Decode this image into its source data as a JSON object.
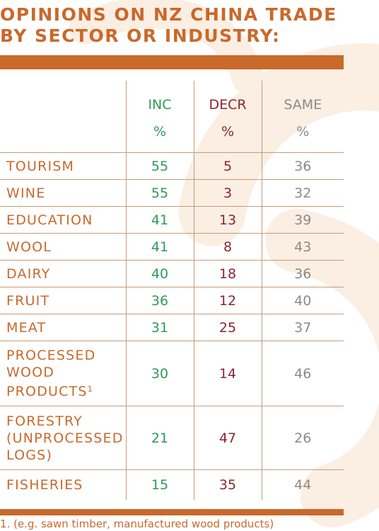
{
  "title_lines": [
    "OPINIONS ON NZ CHINA TRADE",
    "BY SECTOR OR INDUSTRY:"
  ],
  "columns": [
    {
      "label": "INC",
      "unit": "%"
    },
    {
      "label": "DECR",
      "unit": "%"
    },
    {
      "label": "SAME",
      "unit": "%"
    }
  ],
  "rows": [
    {
      "sector": "TOURISM",
      "inc": "55",
      "decr": "5",
      "same": "36"
    },
    {
      "sector": "WINE",
      "inc": "55",
      "decr": "3",
      "same": "32"
    },
    {
      "sector": "EDUCATION",
      "inc": "41",
      "decr": "13",
      "same": "39"
    },
    {
      "sector": "WOOL",
      "inc": "41",
      "decr": "8",
      "same": "43"
    },
    {
      "sector": "DAIRY",
      "inc": "40",
      "decr": "18",
      "same": "36"
    },
    {
      "sector": "FRUIT",
      "inc": "36",
      "decr": "12",
      "same": "40"
    },
    {
      "sector": "MEAT",
      "inc": "31",
      "decr": "25",
      "same": "37"
    },
    {
      "sector_lines": [
        "PROCESSED",
        "WOOD",
        "PRODUCTS"
      ],
      "footnote_mark": "1",
      "inc": "30",
      "decr": "14",
      "same": "46"
    },
    {
      "sector_lines": [
        "FORESTRY",
        "(UNPROCESSED",
        "LOGS)"
      ],
      "inc": "21",
      "decr": "47",
      "same": "26"
    },
    {
      "sector": "FISHERIES",
      "inc": "15",
      "decr": "35",
      "same": "44"
    }
  ],
  "footnote": "1. (e.g. sawn timber, manufactured wood products)",
  "colors": {
    "accent": "#c9692b",
    "inc": "#2e9a5a",
    "decr": "#8e2430",
    "same": "#8c8a87",
    "grid_line": "#c99a78",
    "background_motif": "#fbeee3"
  }
}
